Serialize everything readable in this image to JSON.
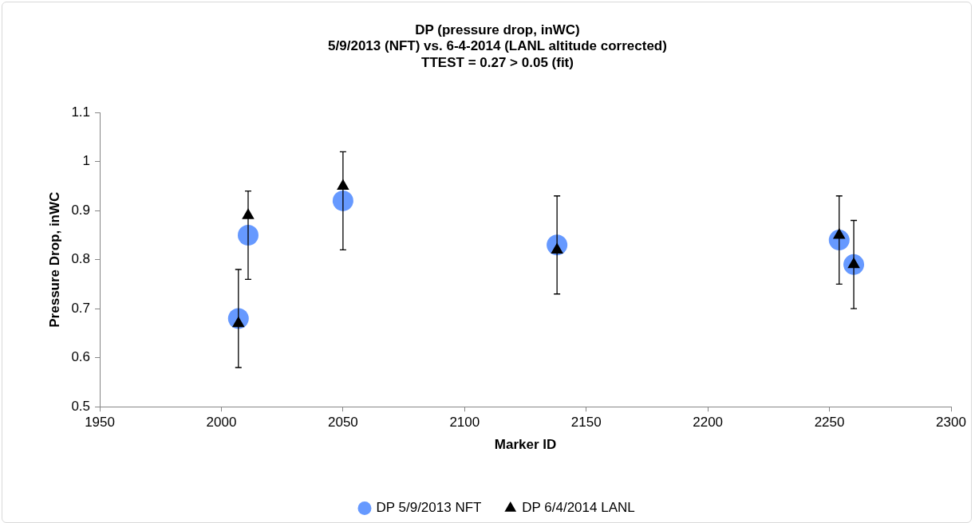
{
  "chart_data": {
    "type": "scatter",
    "title": "DP (pressure drop, inWC)\n5/9/2013 (NFT) vs. 6-4-2014 (LANL altitude corrected)\nTTEST = 0.27 > 0.05 (fit)",
    "xlabel": "Marker ID",
    "ylabel": "Pressure Drop, inWC",
    "xlim": [
      1950,
      2300
    ],
    "xticks": [
      1950,
      2000,
      2050,
      2100,
      2150,
      2200,
      2250,
      2300
    ],
    "ylim": [
      0.5,
      1.1
    ],
    "yticks": [
      0.5,
      {
        "value": 0.6,
        "label": "0.6"
      },
      {
        "value": 0.7,
        "label": "0.7"
      },
      {
        "value": 0.8,
        "label": "0.8"
      },
      {
        "value": 0.9,
        "label": "0.9"
      },
      1,
      1.1
    ],
    "grid": false,
    "legend": "bottom",
    "series": [
      {
        "name": "DP 5/9/2013 NFT",
        "color": "#6699ff",
        "marker": "circle",
        "x": [
          2007,
          2011,
          2050,
          2138,
          2254,
          2260
        ],
        "values": [
          0.68,
          0.85,
          0.92,
          0.83,
          0.84,
          0.79
        ],
        "errors": [
          0.1,
          0.09,
          0.1,
          0.1,
          0.09,
          0.09
        ]
      },
      {
        "name": "DP 6/4/2014 LANL",
        "color": "#000000",
        "marker": "triangle",
        "x": [
          2007,
          2011,
          2050,
          2138,
          2254,
          2260
        ],
        "values": [
          0.67,
          0.89,
          0.95,
          0.82,
          0.85,
          0.79
        ]
      }
    ]
  }
}
